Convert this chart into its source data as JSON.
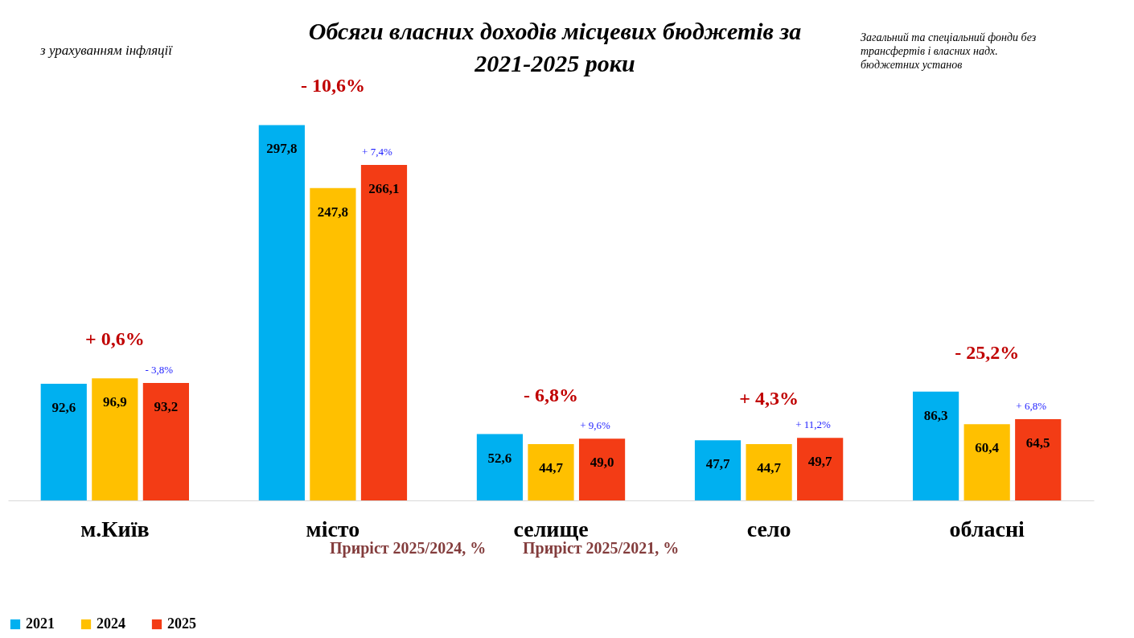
{
  "chart_data": {
    "type": "bar",
    "title": "Обсяги власних доходів місцевих бюджетів за 2021-2025 роки",
    "categories": [
      "м.Київ",
      "місто",
      "селище",
      "село",
      "обласні"
    ],
    "series": [
      {
        "name": "2021",
        "color": "#00b0f0",
        "values": [
          92.6,
          297.8,
          52.6,
          47.7,
          86.3
        ],
        "value_labels": [
          "92,6",
          "297,8",
          "52,6",
          "47,7",
          "86,3"
        ]
      },
      {
        "name": "2024",
        "color": "#ffc000",
        "values": [
          96.9,
          247.8,
          44.7,
          44.7,
          60.4
        ],
        "value_labels": [
          "96,9",
          "247,8",
          "44,7",
          "44,7",
          "60,4"
        ]
      },
      {
        "name": "2025",
        "color": "#f33c15",
        "values": [
          93.2,
          266.1,
          49.0,
          49.7,
          64.5
        ],
        "value_labels": [
          "93,2",
          "266,1",
          "49,0",
          "49,7",
          "64,5"
        ]
      }
    ],
    "legend": "bottom",
    "annotations": [
      "з урахуванням інфляції",
      "Загальний та спеціальний фонди без трансфертів і власних надх. бюджетних установ",
      "Приріст 2025/2024, %",
      "Приріст 2025/2021, %",
      "+ 0,6%",
      "- 3,8%",
      "- 10,6%",
      "+ 7,4%",
      "- 6,8%",
      "+ 9,6%",
      "+ 4,3%",
      "+ 11,2%",
      "- 25,2%",
      "+ 6,8%"
    ]
  }
}
